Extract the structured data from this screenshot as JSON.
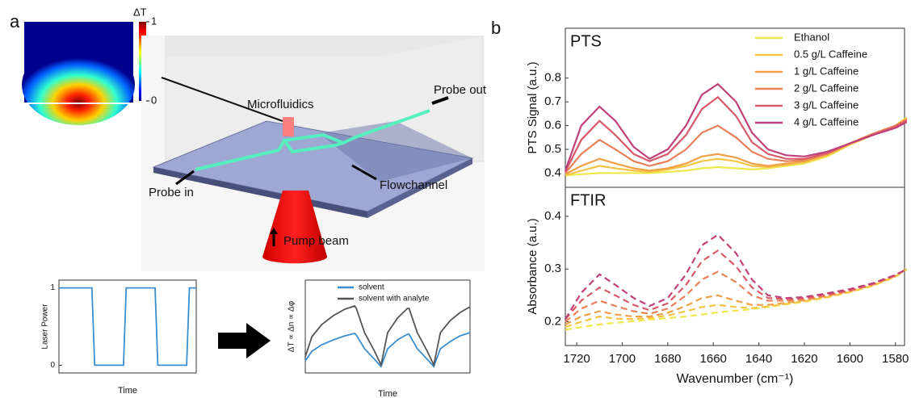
{
  "panel_labels": [
    "a",
    "b"
  ],
  "heatmap": {
    "label": "ΔT",
    "clim": [
      0,
      1
    ],
    "colorbar_ticks": [
      0,
      1
    ]
  },
  "diagram": {
    "labels": [
      "Microfluidics",
      "Probe out",
      "Probe in",
      "Flowchannel",
      "Pump beam"
    ]
  },
  "chart_data": [
    {
      "type": "line",
      "ylabel": "Laser Power",
      "xlabel": "Time",
      "x": [
        0,
        0.24,
        0.26,
        0.47,
        0.49,
        0.7,
        0.72,
        0.93,
        0.95,
        1
      ],
      "xlim": [
        0,
        1
      ],
      "ylim": [
        -0.1,
        1.1
      ],
      "yticks": [
        0,
        1
      ],
      "series": [
        {
          "color": "#3b8ed0",
          "values": [
            1,
            1,
            0,
            0,
            1,
            1,
            0,
            0,
            1,
            1
          ]
        }
      ]
    },
    {
      "type": "line",
      "ylabel": "ΔT ∝ Δn ∝ Δφ",
      "xlabel": "Time",
      "legend": "upper right",
      "x": [
        0,
        0.04,
        0.1,
        0.17,
        0.24,
        0.3,
        0.31,
        0.36,
        0.42,
        0.46,
        0.5,
        0.56,
        0.62,
        0.63,
        0.68,
        0.74,
        0.78,
        0.82,
        0.88,
        0.94,
        1
      ],
      "xlim": [
        0,
        1
      ],
      "ylim": [
        -0.05,
        1.1
      ],
      "series": [
        {
          "name": "solvent",
          "color": "#3b8ed0",
          "values": [
            0.1,
            0.22,
            0.3,
            0.36,
            0.41,
            0.44,
            0.42,
            0.25,
            0.12,
            0.03,
            0.25,
            0.36,
            0.43,
            0.43,
            0.25,
            0.12,
            0.03,
            0.25,
            0.34,
            0.41,
            0.45
          ]
        },
        {
          "name": "solvent with analyte",
          "color": "#555555",
          "values": [
            0.15,
            0.4,
            0.55,
            0.66,
            0.74,
            0.78,
            0.75,
            0.45,
            0.22,
            0.05,
            0.45,
            0.63,
            0.75,
            0.75,
            0.45,
            0.22,
            0.05,
            0.45,
            0.6,
            0.7,
            0.77
          ]
        }
      ]
    },
    {
      "type": "line",
      "title": "PTS",
      "ylabel": "PTS Signal (a.u.)",
      "legend": "upper right",
      "x": [
        1725,
        1718,
        1710,
        1703,
        1695,
        1688,
        1680,
        1672,
        1665,
        1658,
        1650,
        1643,
        1636,
        1628,
        1620,
        1610,
        1600,
        1590,
        1580,
        1575
      ],
      "xlim": [
        1725,
        1576
      ],
      "ylim": [
        0.34,
        1.01
      ],
      "yticks": [
        0.4,
        0.5,
        0.6,
        0.7,
        0.8
      ],
      "series": [
        {
          "name": "Ethanol",
          "color": "#eee84e",
          "values": [
            0.39,
            0.395,
            0.4,
            0.4,
            0.4,
            0.4,
            0.405,
            0.41,
            0.42,
            0.425,
            0.42,
            0.415,
            0.42,
            0.43,
            0.44,
            0.47,
            0.52,
            0.56,
            0.6,
            0.635
          ]
        },
        {
          "name": "0.5 g/L Caffeine",
          "color": "#f3c445",
          "values": [
            0.39,
            0.41,
            0.43,
            0.42,
            0.41,
            0.405,
            0.415,
            0.43,
            0.45,
            0.46,
            0.45,
            0.43,
            0.425,
            0.435,
            0.445,
            0.475,
            0.52,
            0.56,
            0.6,
            0.63
          ]
        },
        {
          "name": "1 g/L Caffeine",
          "color": "#f0a048",
          "values": [
            0.395,
            0.43,
            0.46,
            0.44,
            0.42,
            0.41,
            0.42,
            0.44,
            0.47,
            0.48,
            0.465,
            0.44,
            0.43,
            0.44,
            0.45,
            0.48,
            0.525,
            0.565,
            0.6,
            0.63
          ]
        },
        {
          "name": "2 g/L Caffeine",
          "color": "#e8805a",
          "values": [
            0.4,
            0.48,
            0.54,
            0.5,
            0.45,
            0.43,
            0.45,
            0.5,
            0.57,
            0.6,
            0.55,
            0.49,
            0.46,
            0.45,
            0.455,
            0.48,
            0.525,
            0.565,
            0.6,
            0.625
          ]
        },
        {
          "name": "3 g/L Caffeine",
          "color": "#d85a6a",
          "values": [
            0.405,
            0.54,
            0.62,
            0.56,
            0.48,
            0.45,
            0.48,
            0.56,
            0.67,
            0.72,
            0.64,
            0.53,
            0.48,
            0.46,
            0.46,
            0.485,
            0.525,
            0.56,
            0.595,
            0.62
          ]
        },
        {
          "name": "4 g/L Caffeine",
          "color": "#c0407a",
          "values": [
            0.41,
            0.6,
            0.68,
            0.62,
            0.51,
            0.46,
            0.5,
            0.6,
            0.73,
            0.775,
            0.7,
            0.57,
            0.5,
            0.475,
            0.47,
            0.49,
            0.525,
            0.56,
            0.59,
            0.615
          ]
        }
      ]
    },
    {
      "type": "line",
      "title": "FTIR",
      "ylabel": "Absorbance (a.u.)",
      "xlabel": "Wavenumber (cm⁻¹)",
      "linestyle": "dashed",
      "x": [
        1725,
        1718,
        1710,
        1703,
        1695,
        1688,
        1680,
        1672,
        1665,
        1658,
        1650,
        1643,
        1636,
        1628,
        1620,
        1610,
        1600,
        1590,
        1580,
        1575
      ],
      "xlim": [
        1725,
        1576
      ],
      "xticks": [
        1720,
        1700,
        1680,
        1660,
        1640,
        1620,
        1600,
        1580
      ],
      "ylim": [
        0.155,
        0.455
      ],
      "yticks": [
        0.2,
        0.3,
        0.4
      ],
      "series": [
        {
          "color": "#eee84e",
          "values": [
            0.185,
            0.19,
            0.195,
            0.198,
            0.201,
            0.204,
            0.207,
            0.21,
            0.214,
            0.218,
            0.221,
            0.224,
            0.228,
            0.233,
            0.238,
            0.246,
            0.256,
            0.268,
            0.285,
            0.3
          ]
        },
        {
          "color": "#f3c445",
          "values": [
            0.19,
            0.2,
            0.21,
            0.206,
            0.205,
            0.207,
            0.212,
            0.22,
            0.228,
            0.232,
            0.228,
            0.226,
            0.229,
            0.234,
            0.239,
            0.247,
            0.257,
            0.269,
            0.286,
            0.3
          ]
        },
        {
          "color": "#f0a048",
          "values": [
            0.195,
            0.21,
            0.22,
            0.214,
            0.21,
            0.21,
            0.217,
            0.23,
            0.245,
            0.25,
            0.24,
            0.232,
            0.232,
            0.236,
            0.241,
            0.249,
            0.258,
            0.27,
            0.287,
            0.3
          ]
        },
        {
          "color": "#e8805a",
          "values": [
            0.2,
            0.225,
            0.24,
            0.23,
            0.22,
            0.215,
            0.225,
            0.25,
            0.28,
            0.295,
            0.275,
            0.25,
            0.24,
            0.24,
            0.243,
            0.25,
            0.259,
            0.271,
            0.288,
            0.3
          ]
        },
        {
          "color": "#d85a6a",
          "values": [
            0.205,
            0.24,
            0.265,
            0.25,
            0.232,
            0.222,
            0.235,
            0.27,
            0.315,
            0.335,
            0.305,
            0.265,
            0.245,
            0.243,
            0.245,
            0.252,
            0.26,
            0.272,
            0.288,
            0.3
          ]
        },
        {
          "color": "#c0407a",
          "values": [
            0.205,
            0.255,
            0.29,
            0.27,
            0.245,
            0.23,
            0.245,
            0.29,
            0.345,
            0.365,
            0.33,
            0.28,
            0.25,
            0.245,
            0.247,
            0.254,
            0.262,
            0.273,
            0.289,
            0.3
          ]
        }
      ]
    }
  ]
}
